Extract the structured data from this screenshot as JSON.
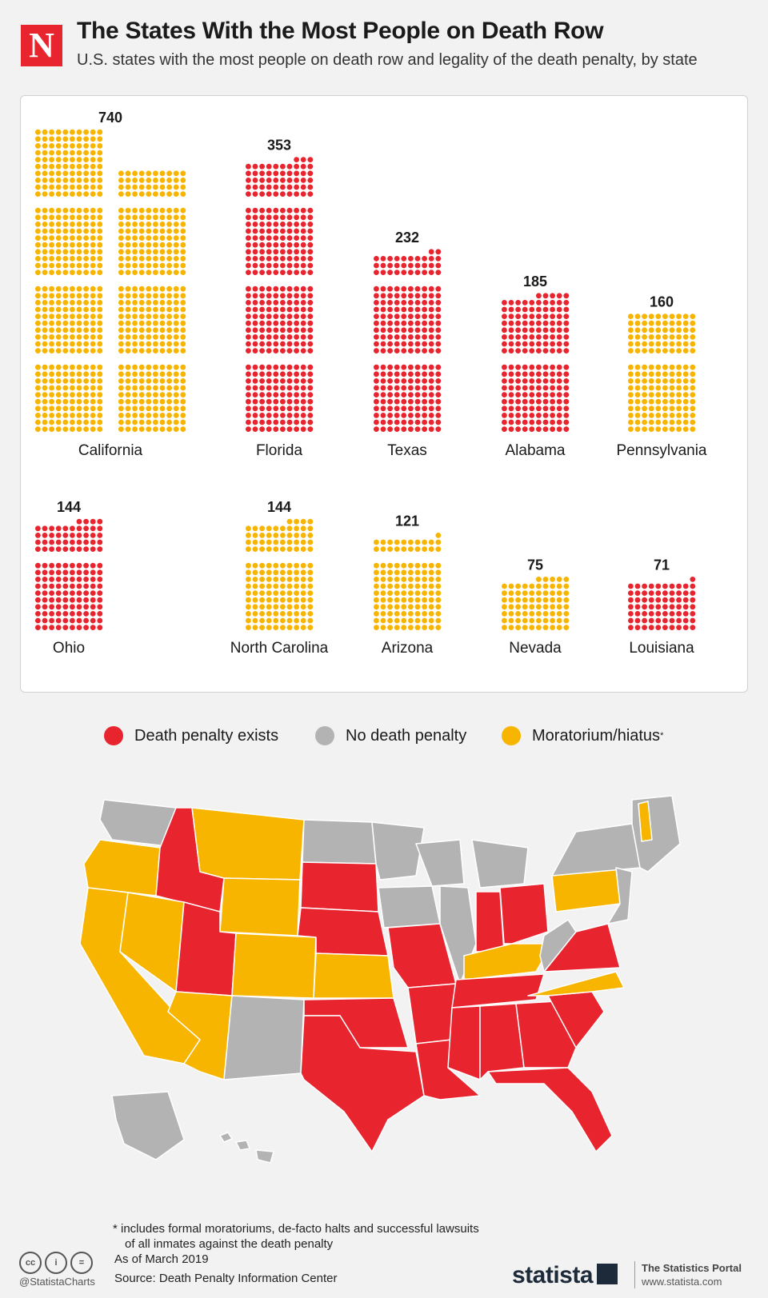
{
  "header": {
    "logo_letter": "N",
    "title": "The States With the Most People on Death Row",
    "subtitle": "U.S. states with the most people on death row and legality of the death penalty, by state"
  },
  "colors": {
    "death_penalty": "#e8242e",
    "no_death_penalty": "#b3b3b3",
    "moratorium": "#f7b500",
    "panel": "#ffffff",
    "background": "#f2f2f2"
  },
  "chart_data": {
    "type": "waffle",
    "title": "The States With the Most People on Death Row",
    "subtitle": "U.S. states with the most people on death row and legality of the death penalty, by state",
    "categories": [
      "California",
      "Florida",
      "Texas",
      "Alabama",
      "Pennsylvania",
      "Ohio",
      "North Carolina",
      "Arizona",
      "Nevada",
      "Louisiana"
    ],
    "values": [
      740,
      353,
      232,
      185,
      160,
      144,
      144,
      121,
      75,
      71
    ],
    "status": [
      "Moratorium/hiatus",
      "Death penalty exists",
      "Death penalty exists",
      "Death penalty exists",
      "Moratorium/hiatus",
      "Death penalty exists",
      "Moratorium/hiatus",
      "Moratorium/hiatus",
      "Moratorium/hiatus",
      "Death penalty exists"
    ],
    "value_labels": [
      "740",
      "353",
      "232",
      "185",
      "160",
      "144",
      "144",
      "121",
      "75",
      "71"
    ]
  },
  "legend": {
    "items": [
      {
        "label": "Death penalty exists",
        "color": "#e8242e"
      },
      {
        "label": "No death penalty",
        "color": "#b3b3b3"
      },
      {
        "label": "Moratorium/hiatus",
        "color": "#f7b500",
        "mark": "*"
      }
    ]
  },
  "footer": {
    "footnote_line1": "* includes formal moratoriums, de-facto halts and successful lawsuits",
    "footnote_line2": "of all inmates against the death penalty",
    "as_of": "As of March 2019",
    "source": "Source: Death Penalty Information Center",
    "handle": "@StatistaCharts",
    "brand": "statista",
    "portal_title": "The Statistics Portal",
    "portal_url": "www.statista.com"
  }
}
